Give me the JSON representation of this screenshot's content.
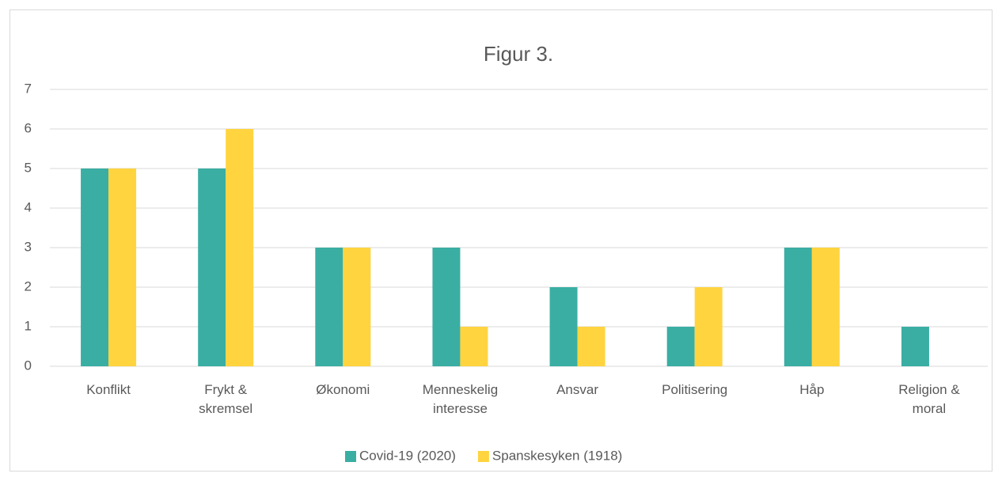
{
  "chart_data": {
    "type": "bar",
    "title": "Figur 3.",
    "categories": [
      "Konflikt",
      "Frykt & skremsel",
      "Økonomi",
      "Menneskelig interesse",
      "Ansvar",
      "Politisering",
      "Håp",
      "Religion & moral"
    ],
    "series": [
      {
        "name": "Covid-19 (2020)",
        "color": "#3aaea3",
        "values": [
          5,
          5,
          3,
          3,
          2,
          1,
          3,
          1
        ]
      },
      {
        "name": "Spanskesyken (1918)",
        "color": "#ffd43f",
        "values": [
          5,
          6,
          3,
          1,
          1,
          2,
          3,
          0
        ]
      }
    ],
    "ylim": [
      0,
      7
    ],
    "yticks": [
      0,
      1,
      2,
      3,
      4,
      5,
      6,
      7
    ],
    "grid": true,
    "legend": "bottom"
  }
}
